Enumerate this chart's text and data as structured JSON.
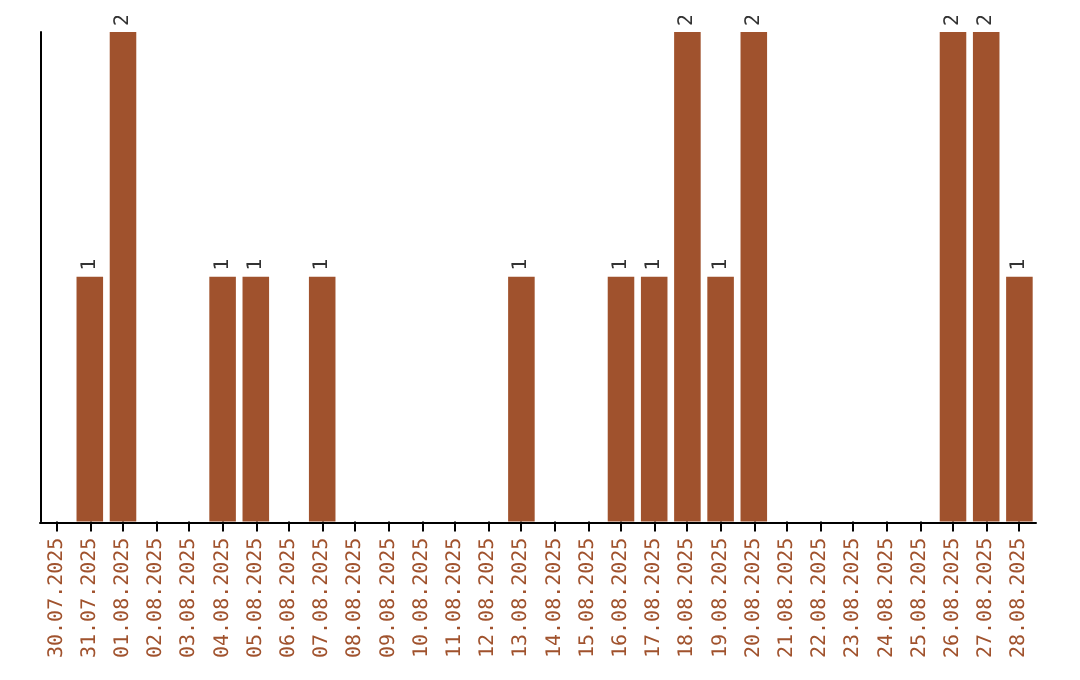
{
  "chart_data": {
    "type": "bar",
    "categories": [
      "30.07.2025",
      "31.07.2025",
      "01.08.2025",
      "02.08.2025",
      "03.08.2025",
      "04.08.2025",
      "05.08.2025",
      "06.08.2025",
      "07.08.2025",
      "08.08.2025",
      "09.08.2025",
      "10.08.2025",
      "11.08.2025",
      "12.08.2025",
      "13.08.2025",
      "14.08.2025",
      "15.08.2025",
      "16.08.2025",
      "17.08.2025",
      "18.08.2025",
      "19.08.2025",
      "20.08.2025",
      "21.08.2025",
      "22.08.2025",
      "23.08.2025",
      "24.08.2025",
      "25.08.2025",
      "26.08.2025",
      "27.08.2025",
      "28.08.2025"
    ],
    "values": [
      0,
      1,
      2,
      0,
      0,
      1,
      1,
      0,
      1,
      0,
      0,
      0,
      0,
      0,
      1,
      0,
      0,
      1,
      1,
      2,
      1,
      2,
      0,
      0,
      0,
      0,
      0,
      2,
      2,
      1
    ],
    "value_labels": [
      null,
      "1",
      "2",
      null,
      null,
      "1",
      "1",
      null,
      "1",
      null,
      null,
      null,
      null,
      null,
      "1",
      null,
      null,
      "1",
      "1",
      "2",
      "1",
      "2",
      null,
      null,
      null,
      null,
      null,
      "2",
      "2",
      "1"
    ],
    "color": "#a0522d",
    "tick_labels": "x",
    "grid": false
  }
}
